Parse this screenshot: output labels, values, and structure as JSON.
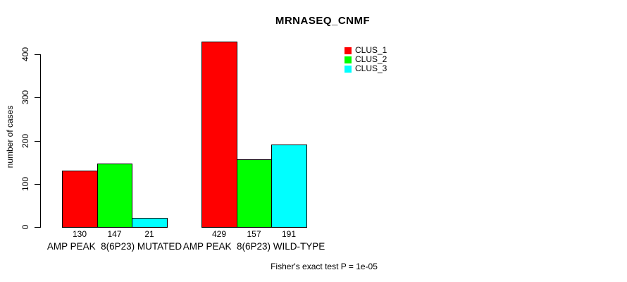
{
  "title": "MRNASEQ_CNMF",
  "footer": "Fisher's exact test P = 1e-05",
  "ylabel": "number of cases",
  "colors": {
    "clus_1": "#FF0000",
    "clus_2": "#00FF00",
    "clus_3": "#00FFFF",
    "axis": "#000000",
    "text": "#000000",
    "background": "#FFFFFF"
  },
  "chart_data": {
    "type": "bar",
    "title": "MRNASEQ_CNMF",
    "xlabel": "",
    "ylabel": "number of cases",
    "categories": [
      "AMP PEAK  8(6P23) MUTATED",
      "AMP PEAK  8(6P23) WILD-TYPE"
    ],
    "series": [
      {
        "name": "CLUS_1",
        "color": "#FF0000",
        "values": [
          130,
          429
        ]
      },
      {
        "name": "CLUS_2",
        "color": "#00FF00",
        "values": [
          147,
          157
        ]
      },
      {
        "name": "CLUS_3",
        "color": "#00FFFF",
        "values": [
          21,
          191
        ]
      }
    ],
    "bar_value_labels": [
      [
        "130",
        "147",
        "21"
      ],
      [
        "429",
        "157",
        "191"
      ]
    ],
    "yticks": [
      0,
      100,
      200,
      300,
      400
    ],
    "ylim": [
      0,
      430
    ],
    "grid": false,
    "legend_position": "top-right",
    "legend_entries": [
      "CLUS_1",
      "CLUS_2",
      "CLUS_3"
    ],
    "annotation": "Fisher's exact test P = 1e-05"
  }
}
